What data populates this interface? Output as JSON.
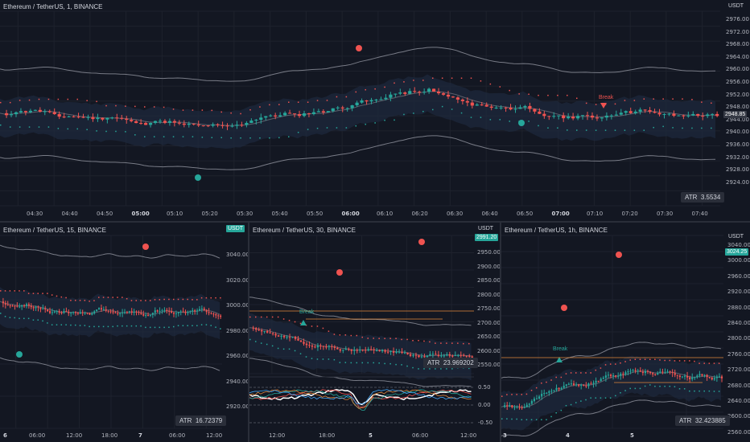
{
  "colors": {
    "bg": "#131722",
    "up": "#26a69a",
    "down": "#ef5350",
    "band": "#787b86",
    "fill": "#1e2a3d",
    "resist": "#ef5350",
    "support": "#26a69a",
    "accent": "#089981"
  },
  "top": {
    "title": "Ethereum / TetherUS, 1, BINANCE",
    "unit": "USDT",
    "price_tag": "2948.85",
    "atr_label": "ATR",
    "atr_value": "3.5534",
    "break_label": "Break",
    "y_ticks": [
      "2976.00",
      "2972.00",
      "2968.00",
      "2964.00",
      "2960.00",
      "2956.00",
      "2952.00",
      "2948.00",
      "2944.00",
      "2940.00",
      "2936.00",
      "2932.00",
      "2928.00",
      "2924.00"
    ],
    "x_ticks": [
      "04:30",
      "04:40",
      "04:50",
      "05:00",
      "05:10",
      "05:20",
      "05:30",
      "05:40",
      "05:50",
      "06:00",
      "06:10",
      "06:20",
      "06:30",
      "06:40",
      "06:50",
      "07:00",
      "07:10",
      "07:20",
      "07:30",
      "07:40"
    ],
    "x_bold": [
      "05:00",
      "06:00",
      "07:00"
    ]
  },
  "left": {
    "title": "Ethereum / TetherUS, 15, BINANCE",
    "unit": "USDT",
    "atr_label": "ATR",
    "atr_value": "16.72379",
    "y_ticks": [
      "3040.00",
      "3020.00",
      "3000.00",
      "2980.00",
      "2960.00",
      "2940.00",
      "2920.00"
    ],
    "x_ticks": [
      "6",
      "06:00",
      "12:00",
      "18:00",
      "7",
      "06:00",
      "12:00"
    ],
    "x_bold": [
      "6",
      "7"
    ]
  },
  "mid": {
    "title": "Ethereum / TetherUS, 30, BINANCE",
    "unit": "USDT",
    "price_tag": "2991.20",
    "atr_label": "ATR",
    "atr_value": "23.969202",
    "break_label": "Break",
    "y_ticks": [
      "2950.00",
      "2900.00",
      "2850.00",
      "2800.00",
      "2750.00",
      "2700.00",
      "2650.00",
      "2600.00",
      "2550.00"
    ],
    "osc_ticks": [
      "0.50",
      "0.00",
      "-0.50"
    ],
    "x_ticks": [
      "12:00",
      "18:00",
      "5",
      "06:00",
      "12:00"
    ],
    "x_bold": [
      "5"
    ]
  },
  "right": {
    "title": "Ethereum / TetherUS, 1h, BINANCE",
    "unit": "USDT",
    "price_tag": "3024.25",
    "atr_label": "ATR",
    "atr_value": "32.423885",
    "break_label": "Break",
    "y_ticks": [
      "3040.00",
      "3000.00",
      "2960.00",
      "2920.00",
      "2880.00",
      "2840.00",
      "2800.00",
      "2760.00",
      "2720.00",
      "2680.00",
      "2640.00",
      "2600.00",
      "2560.00"
    ],
    "x_ticks": [
      "3",
      "4",
      "5"
    ],
    "x_bold": [
      "3",
      "4",
      "5"
    ]
  }
}
